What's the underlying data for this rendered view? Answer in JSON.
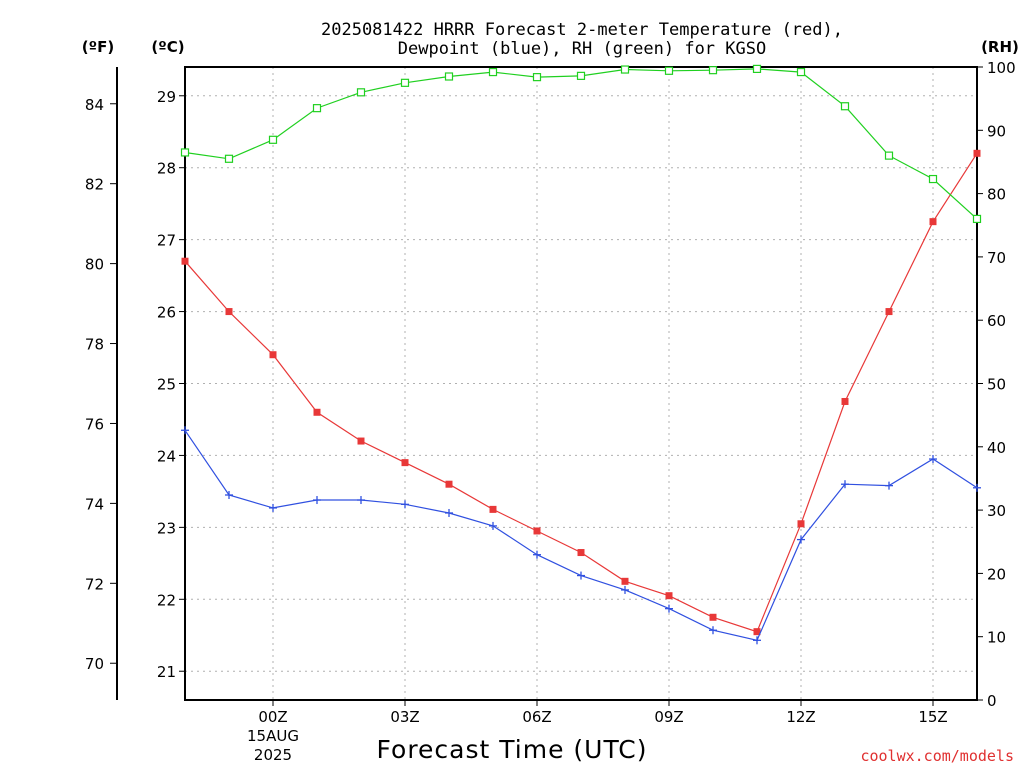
{
  "chart_data": {
    "type": "line",
    "title_line1": "2025081422 HRRR Forecast 2-meter Temperature (red),",
    "title_line2": "Dewpoint (blue), RH (green) for KGSO",
    "xlabel": "Forecast Time (UTC)",
    "units": {
      "fahrenheit": "(ºF)",
      "celsius": "(ºC)",
      "rh": "(RH)"
    },
    "credit": "coolwx.com/models",
    "x_start_hour": 22,
    "x_ticks": [
      {
        "hour": 24,
        "label": "00Z",
        "sub1": "15AUG",
        "sub2": "2025"
      },
      {
        "hour": 27,
        "label": "03Z",
        "sub1": "",
        "sub2": ""
      },
      {
        "hour": 30,
        "label": "06Z",
        "sub1": "",
        "sub2": ""
      },
      {
        "hour": 33,
        "label": "09Z",
        "sub1": "",
        "sub2": ""
      },
      {
        "hour": 36,
        "label": "12Z",
        "sub1": "",
        "sub2": ""
      },
      {
        "hour": 39,
        "label": "15Z",
        "sub1": "",
        "sub2": ""
      }
    ],
    "y_celsius": {
      "range": [
        20.6,
        29.4
      ],
      "ticks": [
        21,
        22,
        23,
        24,
        25,
        26,
        27,
        28,
        29
      ]
    },
    "y_fahrenheit": {
      "ticks": [
        70,
        72,
        74,
        76,
        78,
        80,
        82,
        84
      ]
    },
    "y_rh": {
      "range": [
        0,
        100
      ],
      "ticks": [
        0,
        10,
        20,
        30,
        40,
        50,
        60,
        70,
        80,
        90,
        100
      ]
    },
    "series": [
      {
        "name": "Temperature",
        "color": "#e83838",
        "axis": "celsius",
        "marker": "filled-square",
        "hours": [
          22,
          23,
          24,
          25,
          26,
          27,
          28,
          29,
          30,
          31,
          32,
          33,
          34,
          35,
          36,
          37,
          38,
          39,
          40
        ],
        "values": [
          26.7,
          26.0,
          25.4,
          24.6,
          24.2,
          23.9,
          23.6,
          23.25,
          22.95,
          22.65,
          22.25,
          22.05,
          21.75,
          21.55,
          23.05,
          24.75,
          26.0,
          27.25,
          28.2
        ]
      },
      {
        "name": "Dewpoint",
        "color": "#3050e0",
        "axis": "celsius",
        "marker": "plus",
        "hours": [
          22,
          23,
          24,
          25,
          26,
          27,
          28,
          29,
          30,
          31,
          32,
          33,
          34,
          35,
          36,
          37,
          38,
          39,
          40
        ],
        "values": [
          24.35,
          23.45,
          23.27,
          23.38,
          23.38,
          23.32,
          23.2,
          23.02,
          22.62,
          22.33,
          22.13,
          21.87,
          21.57,
          21.43,
          22.83,
          23.6,
          23.58,
          23.95,
          23.55
        ]
      },
      {
        "name": "RH",
        "color": "#20d020",
        "axis": "rh",
        "marker": "open-square",
        "hours": [
          22,
          23,
          24,
          25,
          26,
          27,
          28,
          29,
          30,
          31,
          32,
          33,
          34,
          35,
          36,
          37,
          38,
          39,
          40
        ],
        "values": [
          86.5,
          85.5,
          88.5,
          93.5,
          96,
          97.5,
          98.5,
          99.2,
          98.4,
          98.6,
          99.6,
          99.4,
          99.5,
          99.7,
          99.2,
          93.8,
          86.0,
          82.3,
          76.0
        ]
      }
    ]
  }
}
